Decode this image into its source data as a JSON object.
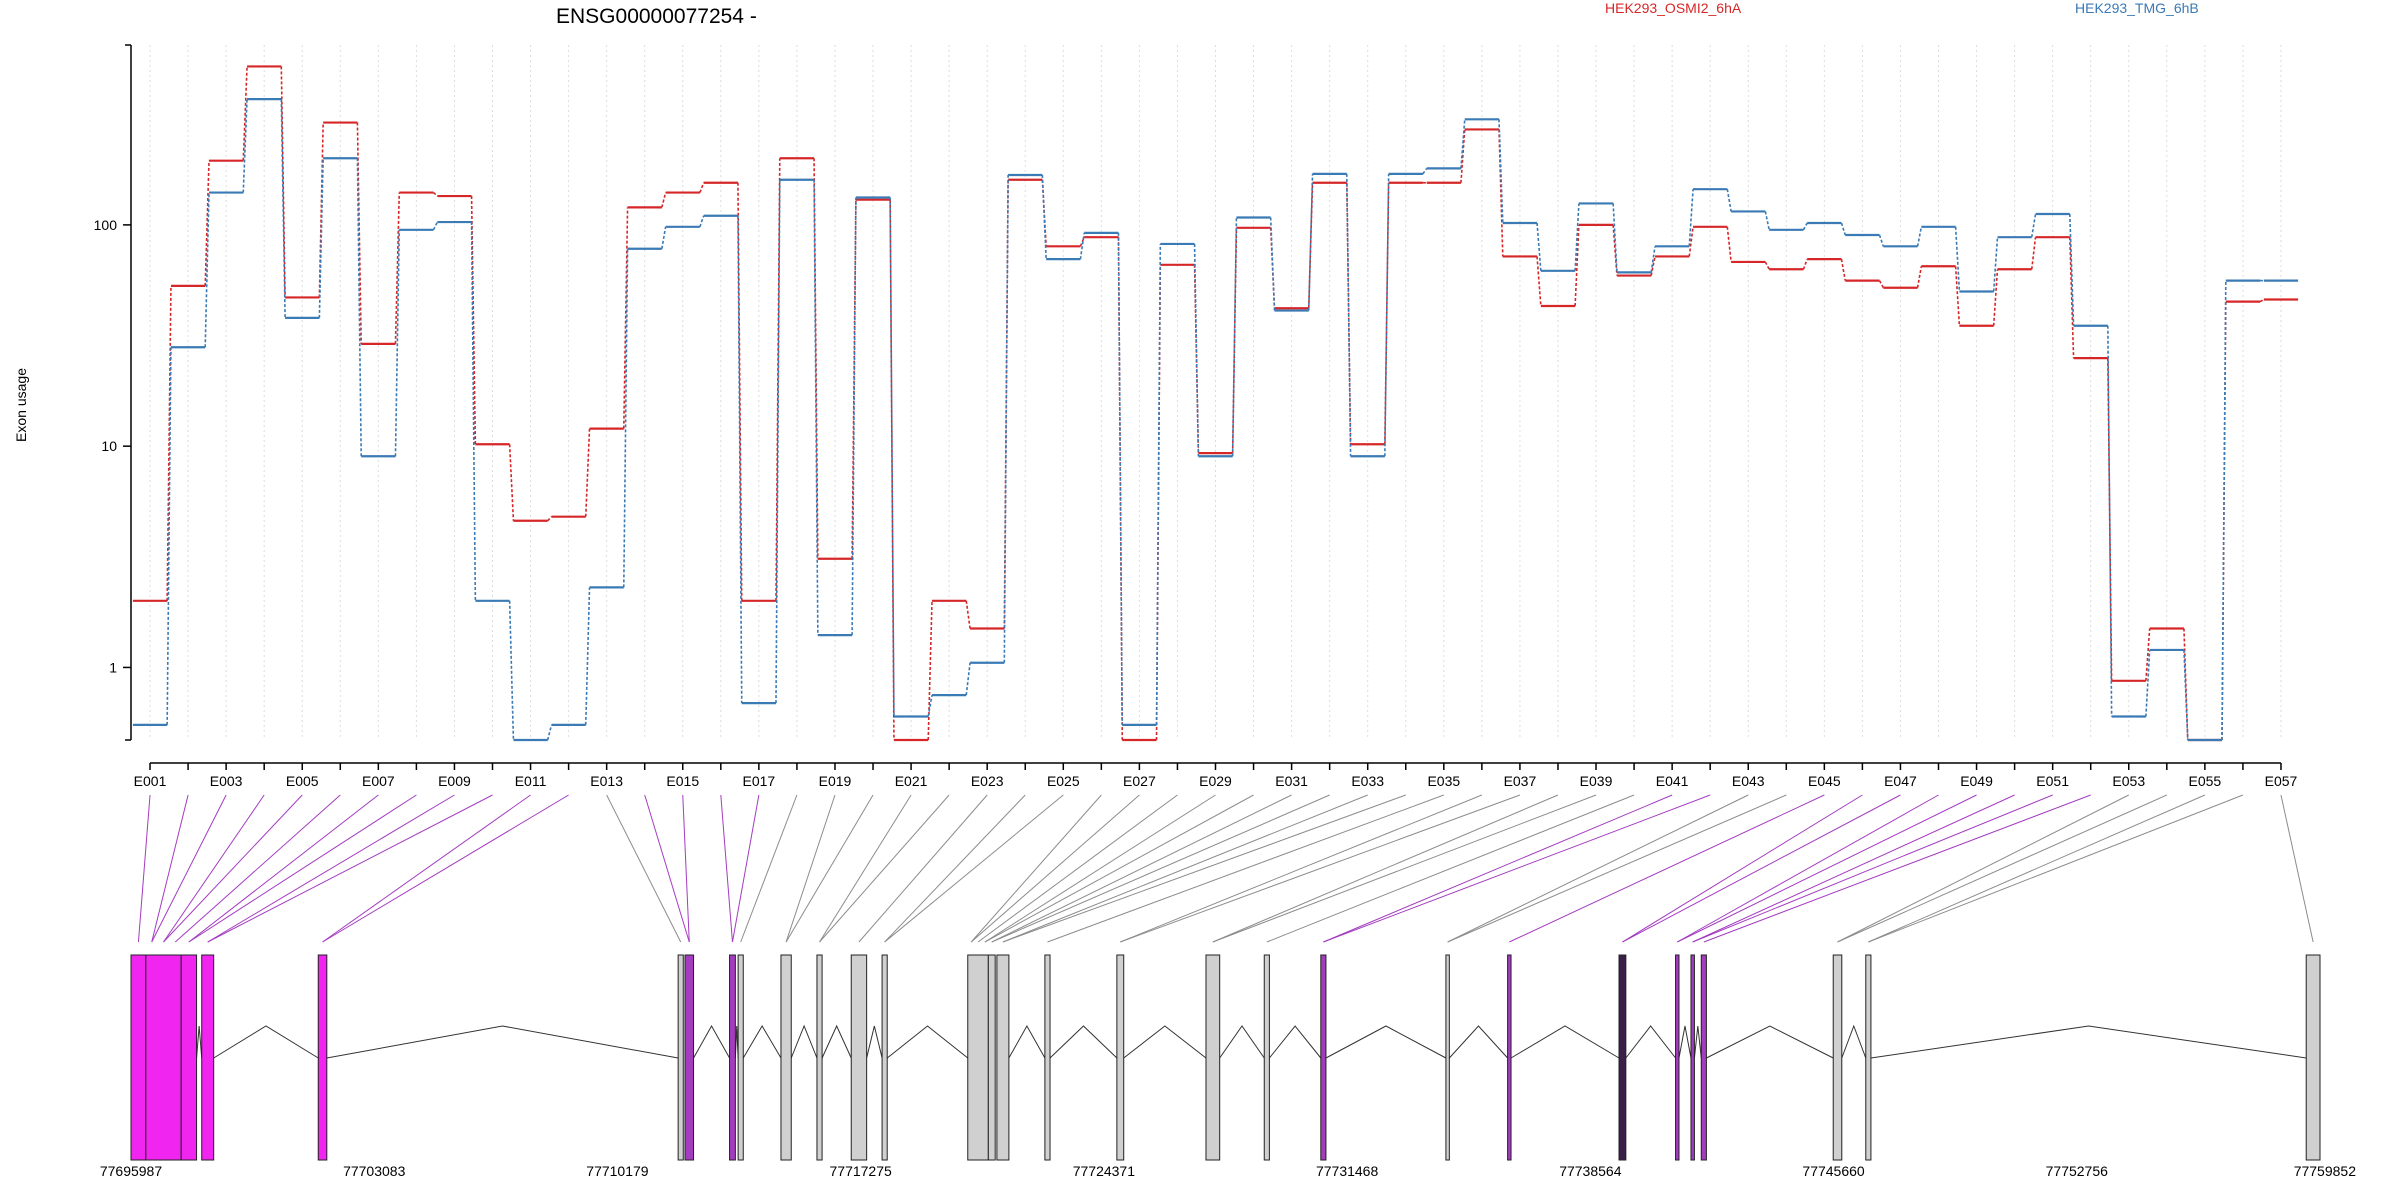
{
  "chart_data": {
    "type": "line",
    "title": "ENSG00000077254 -",
    "ylabel": "Exon usage",
    "y_scale": "log",
    "ylim": [
      0.47,
      650
    ],
    "y_ticks": [
      {
        "value": 1,
        "label": "1"
      },
      {
        "value": 10,
        "label": "10"
      },
      {
        "value": 100,
        "label": "100"
      }
    ],
    "grid": "vertical dotted lines at each exon",
    "categories": [
      "E001",
      "E002",
      "E003",
      "E004",
      "E005",
      "E006",
      "E007",
      "E008",
      "E009",
      "E010",
      "E011",
      "E012",
      "E013",
      "E014",
      "E015",
      "E016",
      "E017",
      "E018",
      "E019",
      "E020",
      "E021",
      "E022",
      "E023",
      "E024",
      "E025",
      "E026",
      "E027",
      "E028",
      "E029",
      "E030",
      "E031",
      "E032",
      "E033",
      "E034",
      "E035",
      "E036",
      "E037",
      "E038",
      "E039",
      "E040",
      "E041",
      "E042",
      "E043",
      "E044",
      "E045",
      "E046",
      "E047",
      "E048",
      "E049",
      "E050",
      "E051",
      "E052",
      "E053",
      "E054",
      "E055",
      "E056",
      "E057"
    ],
    "category_labels_shown": [
      "E001",
      "E003",
      "E005",
      "E007",
      "E009",
      "E011",
      "E013",
      "E015",
      "E017",
      "E019",
      "E021",
      "E023",
      "E025",
      "E027",
      "E029",
      "E031",
      "E033",
      "E035",
      "E037",
      "E039",
      "E041",
      "E043",
      "E045",
      "E047",
      "E049",
      "E051",
      "E053",
      "E055",
      "E057"
    ],
    "legend_position": "top-right",
    "series": [
      {
        "name": "HEK293_OSMI2_6hA",
        "color": "#d62728",
        "values": [
          2,
          53,
          195,
          520,
          47,
          290,
          29,
          140,
          135,
          10.2,
          4.6,
          4.8,
          12,
          120,
          140,
          155,
          2,
          200,
          3.1,
          130,
          0.47,
          2,
          1.5,
          160,
          80,
          88,
          0.47,
          66,
          9.3,
          97,
          42,
          155,
          10.2,
          155,
          155,
          270,
          72,
          43,
          100,
          59,
          72,
          98,
          68,
          63,
          70,
          56,
          52,
          65,
          35,
          63,
          88,
          25,
          0.87,
          1.5,
          0.47,
          45,
          46
        ]
      },
      {
        "name": "HEK293_TMG_6hB",
        "color": "#3a7ab5",
        "values": [
          0.55,
          28,
          140,
          370,
          38,
          200,
          9,
          95,
          103,
          2,
          0.47,
          0.55,
          2.3,
          78,
          98,
          110,
          0.69,
          160,
          1.4,
          133,
          0.6,
          0.75,
          1.05,
          168,
          70,
          92,
          0.55,
          82,
          9,
          108,
          41,
          170,
          9,
          170,
          180,
          300,
          102,
          62,
          125,
          61,
          80,
          145,
          115,
          95,
          102,
          90,
          80,
          98,
          50,
          88,
          112,
          35,
          0.6,
          1.2,
          0.47,
          56,
          56
        ]
      }
    ],
    "gene_model": {
      "coordinate_labels": [
        "77695987",
        "77703083",
        "77710179",
        "77717275",
        "77724371",
        "77731468",
        "77738564",
        "77745660",
        "77752756",
        "77759852"
      ],
      "xlim": [
        77695987,
        77759852
      ],
      "exons": [
        {
          "start": 77695987,
          "end": 77696420,
          "color": "magenta"
        },
        {
          "start": 77696420,
          "end": 77697450,
          "color": "magenta"
        },
        {
          "start": 77697450,
          "end": 77697900,
          "color": "magenta"
        },
        {
          "start": 77698050,
          "end": 77698400,
          "color": "magenta"
        },
        {
          "start": 77701450,
          "end": 77701700,
          "color": "magenta"
        },
        {
          "start": 77711950,
          "end": 77712100,
          "color": "gray"
        },
        {
          "start": 77712150,
          "end": 77712400,
          "color": "purple"
        },
        {
          "start": 77713450,
          "end": 77713620,
          "color": "purple"
        },
        {
          "start": 77713700,
          "end": 77713850,
          "color": "gray"
        },
        {
          "start": 77714950,
          "end": 77715250,
          "color": "gray"
        },
        {
          "start": 77716000,
          "end": 77716150,
          "color": "gray"
        },
        {
          "start": 77717000,
          "end": 77717450,
          "color": "gray"
        },
        {
          "start": 77717900,
          "end": 77718050,
          "color": "gray"
        },
        {
          "start": 77720400,
          "end": 77721000,
          "color": "gray"
        },
        {
          "start": 77721000,
          "end": 77721200,
          "color": "gray"
        },
        {
          "start": 77721250,
          "end": 77721600,
          "color": "gray"
        },
        {
          "start": 77722650,
          "end": 77722800,
          "color": "gray"
        },
        {
          "start": 77724750,
          "end": 77724950,
          "color": "gray"
        },
        {
          "start": 77727350,
          "end": 77727750,
          "color": "gray"
        },
        {
          "start": 77729050,
          "end": 77729200,
          "color": "gray"
        },
        {
          "start": 77730700,
          "end": 77730850,
          "color": "purple"
        },
        {
          "start": 77734350,
          "end": 77734450,
          "color": "gray"
        },
        {
          "start": 77736150,
          "end": 77736250,
          "color": "purple"
        },
        {
          "start": 77739400,
          "end": 77739600,
          "color": "dark"
        },
        {
          "start": 77741050,
          "end": 77741150,
          "color": "purple"
        },
        {
          "start": 77741500,
          "end": 77741600,
          "color": "purple"
        },
        {
          "start": 77741800,
          "end": 77741950,
          "color": "purple"
        },
        {
          "start": 77745650,
          "end": 77745900,
          "color": "gray"
        },
        {
          "start": 77746600,
          "end": 77746750,
          "color": "gray"
        },
        {
          "start": 77759450,
          "end": 77759852,
          "color": "gray"
        }
      ]
    }
  }
}
